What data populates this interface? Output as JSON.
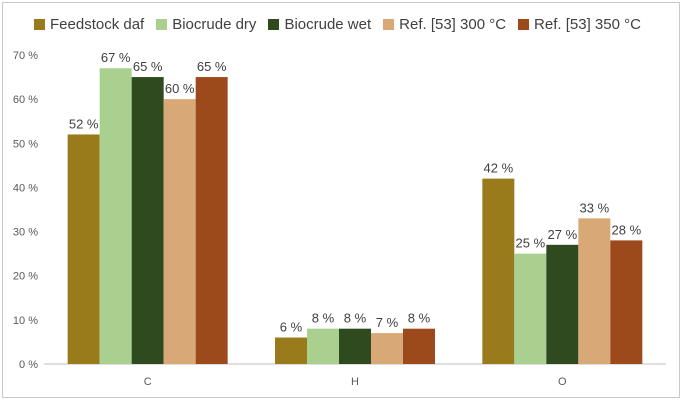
{
  "chart_data": {
    "type": "bar",
    "categories": [
      "C",
      "H",
      "O"
    ],
    "series": [
      {
        "name": "Feedstock daf",
        "color": "#9a7b1c",
        "values": [
          52,
          6,
          42
        ],
        "labels": [
          "52 %",
          "6 %",
          "42 %"
        ]
      },
      {
        "name": "Biocrude dry",
        "color": "#a9d08e",
        "values": [
          67,
          8,
          25
        ],
        "labels": [
          "67 %",
          "8 %",
          "25 %"
        ]
      },
      {
        "name": "Biocrude wet",
        "color": "#2f4a1e",
        "values": [
          65,
          8,
          27
        ],
        "labels": [
          "65 %",
          "8 %",
          "27 %"
        ]
      },
      {
        "name": "Ref. [53] 300 °C",
        "color": "#d9a877",
        "values": [
          60,
          7,
          33
        ],
        "labels": [
          "60 %",
          "7 %",
          "33 %"
        ]
      },
      {
        "name": "Ref. [53] 350 °C",
        "color": "#9c4a1c",
        "values": [
          65,
          8,
          28
        ],
        "labels": [
          "65 %",
          "8 %",
          "28 %"
        ]
      }
    ],
    "y_ticks": [
      "0 %",
      "10 %",
      "20 %",
      "30 %",
      "40 %",
      "50 %",
      "60 %",
      "70 %"
    ],
    "ylim": [
      0,
      70
    ],
    "grid": false,
    "legend_position": "top-left"
  }
}
